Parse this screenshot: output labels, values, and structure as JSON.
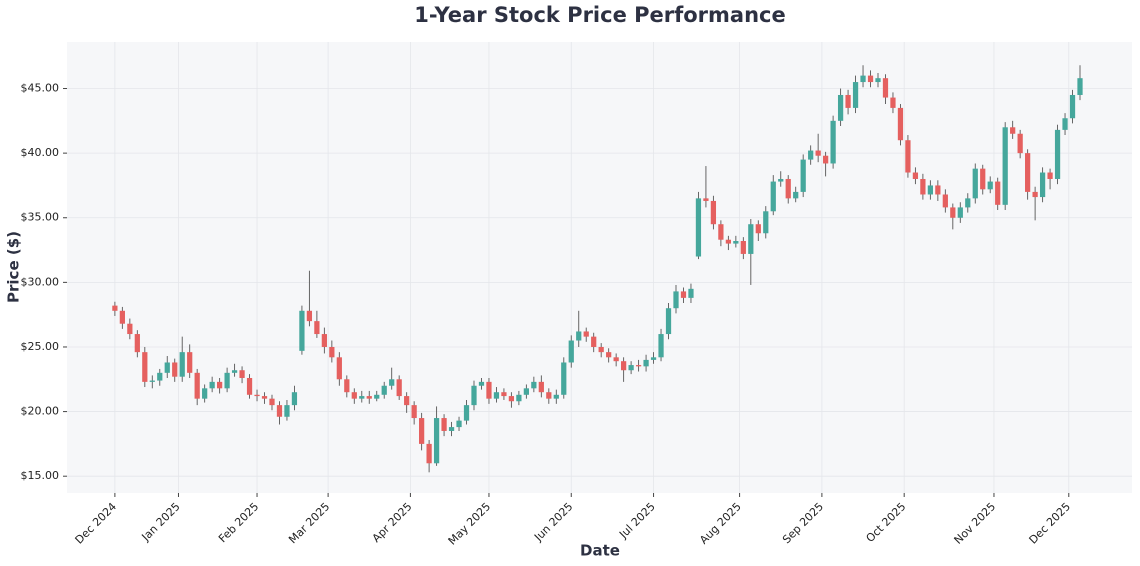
{
  "chart_data": {
    "type": "candlestick",
    "title": "1-Year Stock Price Performance",
    "xlabel": "Date",
    "ylabel": "Price ($)",
    "up_color": "#45a79c",
    "down_color": "#e5605f",
    "grid": true,
    "xlim": [
      -12.8,
      271.9
    ],
    "ylim": [
      13.7,
      48.6
    ],
    "xticks": [
      {
        "value": 0,
        "label": "Dec 2024"
      },
      {
        "value": 17,
        "label": "Jan 2025"
      },
      {
        "value": 38,
        "label": "Feb 2025"
      },
      {
        "value": 57,
        "label": "Mar 2025"
      },
      {
        "value": 79,
        "label": "Apr 2025"
      },
      {
        "value": 100,
        "label": "May 2025"
      },
      {
        "value": 122,
        "label": "Jun 2025"
      },
      {
        "value": 144,
        "label": "Jul 2025"
      },
      {
        "value": 167,
        "label": "Aug 2025"
      },
      {
        "value": 189,
        "label": "Sep 2025"
      },
      {
        "value": 211,
        "label": "Oct 2025"
      },
      {
        "value": 235,
        "label": "Nov 2025"
      },
      {
        "value": 255,
        "label": "Dec 2025"
      }
    ],
    "yticks": [
      {
        "value": 15,
        "label": "$15.00"
      },
      {
        "value": 20,
        "label": "$20.00"
      },
      {
        "value": 25,
        "label": "$25.00"
      },
      {
        "value": 30,
        "label": "$30.00"
      },
      {
        "value": 35,
        "label": "$35.00"
      },
      {
        "value": 40,
        "label": "$40.00"
      },
      {
        "value": 45,
        "label": "$45.00"
      }
    ],
    "x": [
      0,
      2,
      4,
      6,
      8,
      10,
      12,
      14,
      16,
      18,
      20,
      22,
      24,
      26,
      28,
      30,
      32,
      34,
      36,
      38,
      40,
      42,
      44,
      46,
      48,
      50,
      52,
      54,
      56,
      58,
      60,
      62,
      64,
      66,
      68,
      70,
      72,
      74,
      76,
      78,
      80,
      82,
      84,
      86,
      88,
      90,
      92,
      94,
      96,
      98,
      100,
      102,
      104,
      106,
      108,
      110,
      112,
      114,
      116,
      118,
      120,
      122,
      124,
      126,
      128,
      130,
      132,
      134,
      136,
      138,
      140,
      142,
      144,
      146,
      148,
      150,
      152,
      154,
      156,
      158,
      160,
      162,
      164,
      166,
      168,
      170,
      172,
      174,
      176,
      178,
      180,
      182,
      184,
      186,
      188,
      190,
      192,
      194,
      196,
      198,
      200,
      202,
      204,
      206,
      208,
      210,
      212,
      214,
      216,
      218,
      220,
      222,
      224,
      226,
      228,
      230,
      232,
      234,
      236,
      238,
      240,
      242,
      244,
      246,
      248,
      250,
      252,
      254,
      256,
      258
    ],
    "open": [
      28.2,
      27.8,
      26.8,
      26,
      24.6,
      22.3,
      22.4,
      23,
      23.8,
      22.7,
      24.6,
      23,
      21,
      21.8,
      22.3,
      21.8,
      23,
      23.2,
      22.6,
      21.3,
      21.2,
      21,
      20.5,
      19.6,
      20.5,
      24.7,
      27.8,
      27,
      26,
      25,
      24.2,
      22.5,
      21.5,
      21,
      21.2,
      21,
      21.3,
      22,
      22.5,
      21.2,
      20.5,
      19.5,
      17.5,
      16,
      19.5,
      18.5,
      18.8,
      19.3,
      20.5,
      22,
      22.3,
      21,
      21.5,
      21.2,
      20.8,
      21.3,
      21.8,
      22.3,
      21.5,
      21,
      21.3,
      23.8,
      25.5,
      26.2,
      25.8,
      25,
      24.6,
      24.2,
      23.9,
      23.2,
      23.6,
      23.5,
      24,
      24.2,
      26,
      28,
      29.3,
      28.8,
      32,
      36.5,
      36.3,
      34.5,
      33.3,
      33,
      33.2,
      32.2,
      34.5,
      33.8,
      35.5,
      37.8,
      38,
      36.5,
      37,
      39.5,
      40.2,
      39.8,
      39.2,
      42.5,
      44.5,
      43.5,
      45.5,
      46,
      45.5,
      45.8,
      44.3,
      43.5,
      41,
      38.5,
      38,
      36.8,
      37.5,
      36.8,
      35.8,
      35,
      35.8,
      36.5,
      38.8,
      37.2,
      37.8,
      36,
      42,
      41.5,
      40,
      37,
      36.6,
      38.5,
      38,
      41.8,
      42.7,
      44.5
    ],
    "high": [
      28.5,
      28.1,
      27.2,
      26.3,
      25,
      22.8,
      23.3,
      24.3,
      24.1,
      25.8,
      25.2,
      23.3,
      22.1,
      22.7,
      22.6,
      23.4,
      23.7,
      23.5,
      22.9,
      21.7,
      21.5,
      21.3,
      20.8,
      20.9,
      22,
      28.2,
      30.9,
      27.8,
      26.5,
      25.5,
      24.6,
      22.8,
      21.8,
      21.6,
      21.6,
      21.6,
      22.3,
      23.4,
      22.8,
      21.5,
      20.8,
      19.9,
      17.8,
      20.4,
      19.8,
      19.2,
      19.6,
      20.9,
      22.4,
      22.6,
      22.6,
      21.9,
      21.8,
      21.5,
      21.6,
      22.1,
      22.7,
      22.8,
      21.8,
      21.7,
      24.2,
      25.9,
      27.8,
      26.5,
      26.1,
      25.3,
      24.9,
      24.5,
      24.2,
      23.9,
      24,
      24.4,
      24.6,
      26.4,
      28.4,
      29.8,
      29.6,
      29.9,
      37,
      39,
      36.7,
      34.8,
      33.6,
      33.6,
      33.5,
      34.9,
      34.8,
      35.9,
      38.3,
      38.6,
      38.3,
      37.4,
      39.9,
      40.6,
      41.5,
      40.1,
      42.9,
      45,
      44.9,
      46,
      46.8,
      46.4,
      46.2,
      46.1,
      44.7,
      43.8,
      41.4,
      38.9,
      38.4,
      37.9,
      37.9,
      37.2,
      36.1,
      36.2,
      36.9,
      39.2,
      39.1,
      38.2,
      38.1,
      42.4,
      42.5,
      41.8,
      40.3,
      37.4,
      38.9,
      38.8,
      42.2,
      43.1,
      44.9,
      46.8
    ],
    "low": [
      27.4,
      26.4,
      25.6,
      24.2,
      21.9,
      21.8,
      22,
      22.6,
      22.3,
      22.3,
      22.6,
      20.5,
      20.7,
      21.5,
      21.4,
      21.5,
      22.7,
      22.2,
      21,
      20.8,
      20.6,
      20.1,
      19,
      19.3,
      20.1,
      24.4,
      26.6,
      25.7,
      24.5,
      23.8,
      22,
      21.1,
      20.6,
      20.7,
      20.6,
      20.8,
      21,
      21.7,
      20.9,
      19.9,
      19,
      17,
      15.3,
      15.8,
      18.1,
      18.1,
      18.5,
      19,
      20.1,
      21.7,
      20.6,
      20.7,
      20.9,
      20.3,
      20.5,
      21,
      21.5,
      21.1,
      20.6,
      20.6,
      21,
      23.4,
      25,
      25.4,
      24.6,
      24.2,
      23.8,
      23.5,
      22.3,
      22.9,
      23.1,
      23.1,
      23.7,
      23.9,
      25.6,
      27.6,
      28.4,
      28.4,
      31.8,
      35.8,
      34.1,
      32.8,
      32.5,
      32.7,
      31.8,
      29.8,
      33.2,
      33.4,
      35.2,
      37.4,
      36.1,
      36.2,
      36.6,
      39.1,
      39.3,
      38.2,
      38.8,
      42.1,
      43,
      43.1,
      45.1,
      45.1,
      45.1,
      43.8,
      43.1,
      40.6,
      38.1,
      37.6,
      36.4,
      36.4,
      36.3,
      35.4,
      34.1,
      34.6,
      35.4,
      36.1,
      36.8,
      36.9,
      35.6,
      35.6,
      41.1,
      39.6,
      36.4,
      34.8,
      36.2,
      37.2,
      37.6,
      41.4,
      42.3,
      44.1
    ],
    "close": [
      27.8,
      26.8,
      26,
      24.6,
      22.3,
      22.4,
      23,
      23.8,
      22.7,
      24.6,
      23,
      21,
      21.8,
      22.3,
      21.8,
      23,
      23.2,
      22.6,
      21.3,
      21.2,
      21,
      20.5,
      19.6,
      20.5,
      21.5,
      27.8,
      27,
      26,
      25,
      24.2,
      22.5,
      21.5,
      21,
      21.2,
      21,
      21.3,
      22,
      22.5,
      21.2,
      20.5,
      19.5,
      17.5,
      16,
      19.5,
      18.5,
      18.8,
      19.3,
      20.5,
      22,
      22.3,
      21,
      21.5,
      21.2,
      20.8,
      21.3,
      21.8,
      22.3,
      21.5,
      21,
      21.3,
      23.8,
      25.5,
      26.2,
      25.8,
      25,
      24.6,
      24.2,
      23.9,
      23.2,
      23.6,
      23.5,
      24,
      24.2,
      26,
      28,
      29.3,
      28.8,
      29.5,
      36.5,
      36.3,
      34.5,
      33.3,
      33,
      33.2,
      32.2,
      34.5,
      33.8,
      35.5,
      37.8,
      38,
      36.5,
      37,
      39.5,
      40.2,
      39.8,
      39.2,
      42.5,
      44.5,
      43.5,
      45.5,
      46,
      45.5,
      45.8,
      44.3,
      43.5,
      41,
      38.5,
      38,
      36.8,
      37.5,
      36.8,
      35.8,
      35,
      35.8,
      36.5,
      38.8,
      37.2,
      37.8,
      36,
      42,
      41.5,
      40,
      37,
      36.6,
      38.5,
      38,
      41.8,
      42.7,
      44.5,
      45.8
    ]
  }
}
